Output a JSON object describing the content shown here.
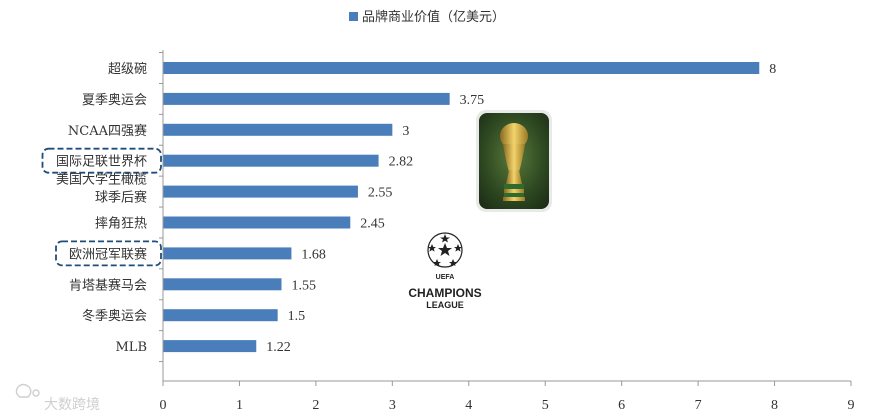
{
  "chart_data": {
    "type": "bar",
    "orientation": "horizontal",
    "categories": [
      [
        "超级碗"
      ],
      [
        "夏季奥运会"
      ],
      [
        "NCAA四强赛"
      ],
      [
        "国际足联世界杯"
      ],
      [
        "美国大学生橄榄",
        "球季后赛"
      ],
      [
        "摔角狂热"
      ],
      [
        "欧洲冠军联赛"
      ],
      [
        "肯塔基赛马会"
      ],
      [
        "冬季奥运会"
      ],
      [
        "MLB"
      ]
    ],
    "value_labels": [
      "8",
      "3.75",
      "3",
      "2.82",
      "2.55",
      "2.45",
      "1.68",
      "1.55",
      "1.5",
      "1.22"
    ],
    "series": [
      {
        "name": "品牌商业价值（亿美元）",
        "values": [
          7.8,
          3.75,
          3.0,
          2.82,
          2.55,
          2.45,
          1.68,
          1.55,
          1.5,
          1.22
        ]
      }
    ],
    "xlim": [
      0,
      9
    ],
    "xticks": [
      "0",
      "1",
      "2",
      "3",
      "4",
      "5",
      "6",
      "7",
      "8",
      "9"
    ],
    "legend_position": "top-center",
    "grid": false,
    "highlighted_categories": [
      "国际足联世界杯",
      "欧洲冠军联赛"
    ],
    "colors": {
      "bar": "#4a7ebb",
      "axis": "#999999",
      "highlight_box": "#1f4e79"
    }
  },
  "badges": {
    "champions_league": {
      "line1": "UEFA",
      "line2": "CHAMPIONS",
      "line3": "LEAGUE"
    }
  },
  "watermark": {
    "text": "大数跨境"
  }
}
